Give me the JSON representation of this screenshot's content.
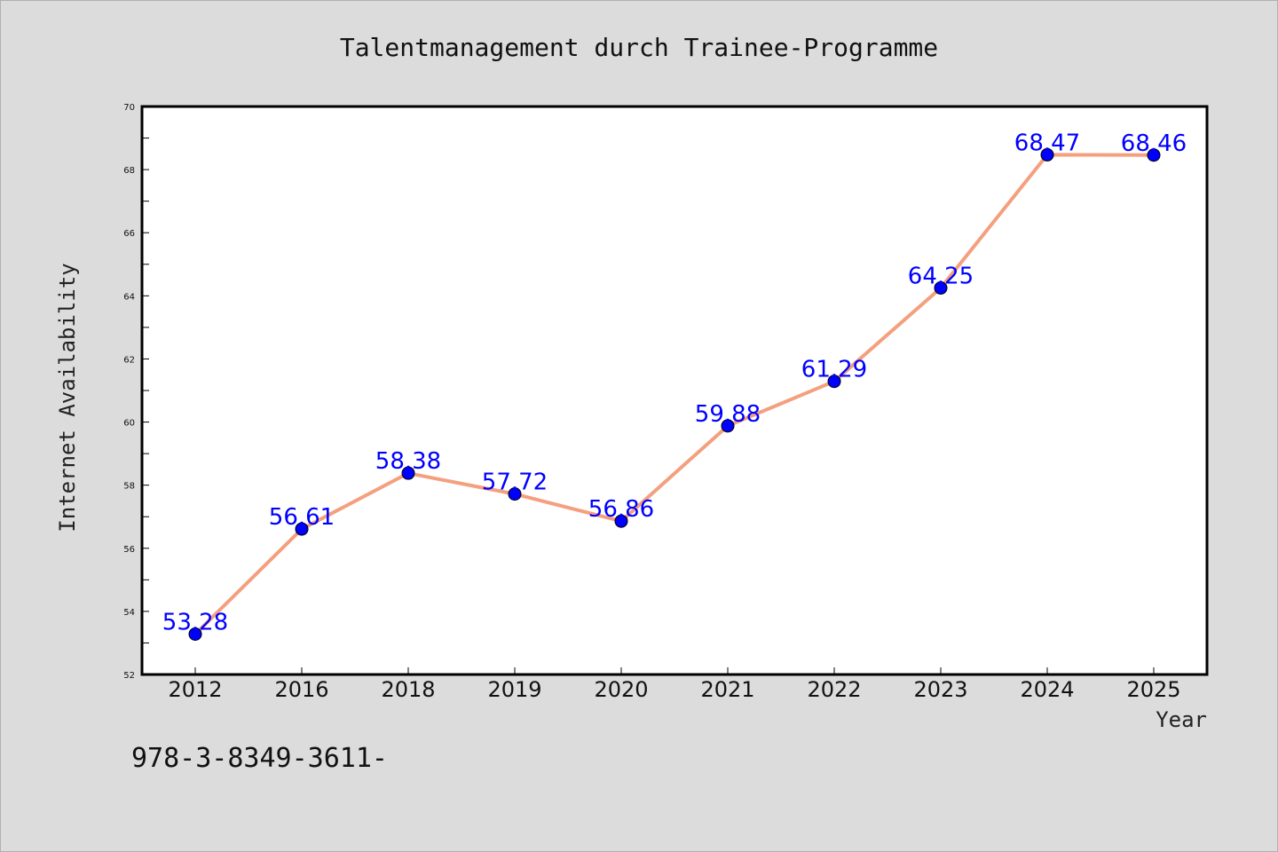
{
  "chart_data": {
    "type": "line",
    "title": "Talentmanagement durch Trainee-Programme",
    "xlabel": "Year",
    "ylabel": "Internet Availability",
    "categories": [
      "2012",
      "2016",
      "2018",
      "2019",
      "2020",
      "2021",
      "2022",
      "2023",
      "2024",
      "2025"
    ],
    "values": [
      53.28,
      56.61,
      58.38,
      57.72,
      56.86,
      59.88,
      61.29,
      64.25,
      68.47,
      68.46
    ],
    "data_labels": [
      "53.28",
      "56.61",
      "58.38",
      "57.72",
      "56.86",
      "59.88",
      "61.29",
      "64.25",
      "68.47",
      "68.46"
    ],
    "ylim": [
      52,
      70
    ],
    "yticks": [
      "52",
      "54",
      "56",
      "58",
      "60",
      "62",
      "64",
      "66",
      "68",
      "70"
    ],
    "grid": false,
    "line_color": "#f4a07e",
    "marker_color": "#0000ff",
    "label_color": "#0000ff"
  },
  "footer_note": "978-3-8349-3611-"
}
